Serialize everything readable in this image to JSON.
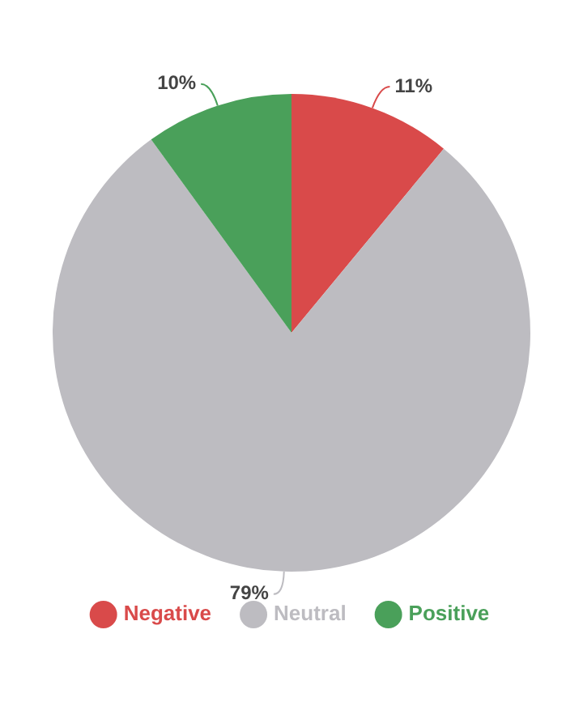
{
  "chart_data": {
    "type": "pie",
    "categories": [
      "Negative",
      "Neutral",
      "Positive"
    ],
    "values": [
      11,
      79,
      10
    ],
    "colors": [
      "#d94a4a",
      "#bdbcc1",
      "#4aa05a"
    ],
    "value_labels": [
      "11%",
      "79%",
      "10%"
    ],
    "legend": "bottom"
  }
}
